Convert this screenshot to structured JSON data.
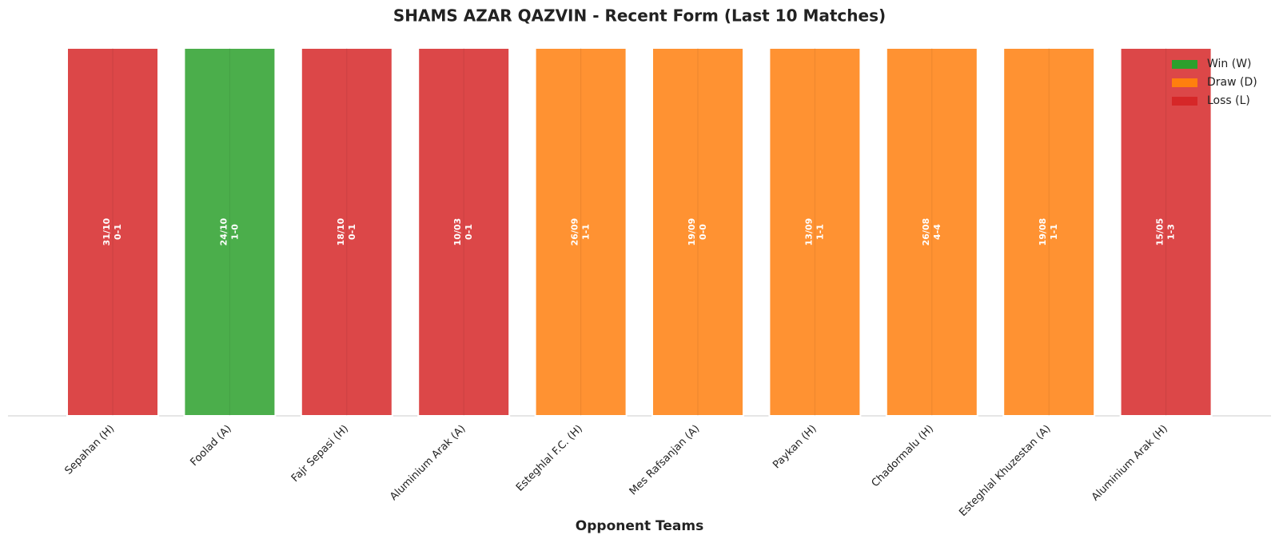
{
  "chart_data": {
    "type": "bar",
    "title": "SHAMS AZAR QAZVIN - Recent Form (Last 10 Matches)",
    "x_label": "Opponent Teams",
    "categories": [
      "Sepahan (H)",
      "Foolad (A)",
      "Fajr Sepasi (H)",
      "Aluminium Arak (A)",
      "Esteghlal F.C. (H)",
      "Mes Rafsanjan (A)",
      "Paykan (H)",
      "Chadormalu (H)",
      "Esteghlal Khuzestan (A)",
      "Aluminium Arak (H)"
    ],
    "values": [
      1,
      1,
      1,
      1,
      1,
      1,
      1,
      1,
      1,
      1
    ],
    "dates": [
      "31/10",
      "24/10",
      "18/10",
      "10/03",
      "26/09",
      "19/09",
      "13/09",
      "26/08",
      "19/08",
      "15/05"
    ],
    "scores": [
      "0-1",
      "1-0",
      "0-1",
      "0-1",
      "1-1",
      "0-0",
      "1-1",
      "4-4",
      "1-1",
      "1-3"
    ],
    "colors": [
      "#d62728",
      "#2ca02c",
      "#d62728",
      "#d62728",
      "#ff7f0e",
      "#ff7f0e",
      "#ff7f0e",
      "#ff7f0e",
      "#ff7f0e",
      "#d62728"
    ],
    "ylim": [
      0,
      1
    ],
    "legend_position": "upper right",
    "legend": [
      {
        "name": "Win (W)",
        "color": "#2ca02c"
      },
      {
        "name": "Draw (D)",
        "color": "#ff7f0e"
      },
      {
        "name": "Loss (L)",
        "color": "#d62728"
      }
    ]
  }
}
